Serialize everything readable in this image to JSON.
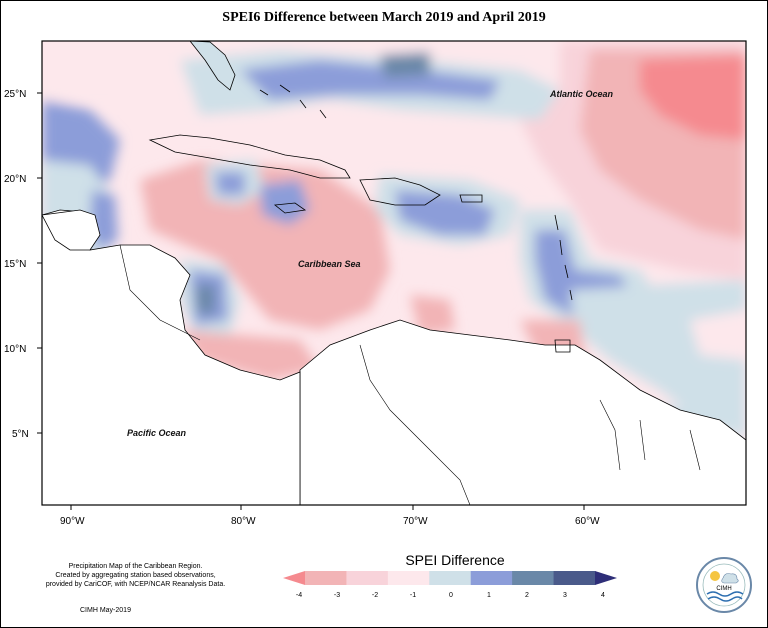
{
  "title": "SPEI6 Difference between March 2019 and April 2019",
  "map": {
    "x_ticks": [
      "90°W",
      "80°W",
      "70°W",
      "60°W"
    ],
    "y_ticks": [
      "25°N",
      "20°N",
      "15°N",
      "10°N",
      "5°N"
    ],
    "labels": {
      "atlantic": "Atlantic Ocean",
      "caribbean": "Caribbean Sea",
      "pacific": "Pacific Ocean"
    }
  },
  "legend": {
    "title": "SPEI Difference",
    "ticks": [
      "-4",
      "-3",
      "-2",
      "-1",
      "0",
      "1",
      "2",
      "3",
      "4"
    ],
    "colors": [
      "#f58a8f",
      "#f2b4b6",
      "#f8d3da",
      "#fde8ec",
      "#cfe0e8",
      "#8c9dd9",
      "#6a88a8",
      "#4a5a8a",
      "#2e2e78"
    ]
  },
  "caption": {
    "line1": "Precipitation Map of the Caribbean Region.",
    "line2": "Created by aggregating station based observations,",
    "line3": "provided by CariCOF, with NCEP/NCAR Reanalysis Data."
  },
  "credit": "CIMH May-2019",
  "logo": {
    "text": "CIMH",
    "icon": "cimh-logo-icon"
  }
}
